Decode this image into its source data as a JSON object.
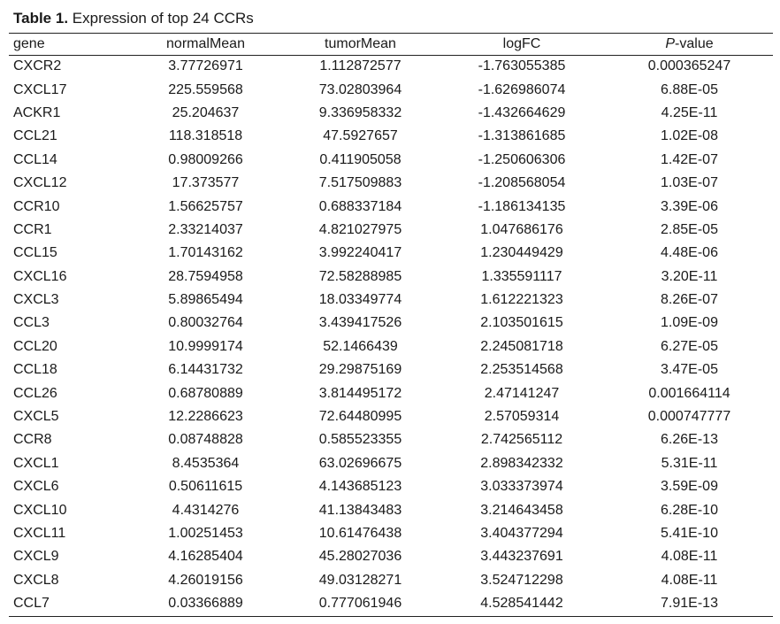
{
  "caption": {
    "label": "Table 1.",
    "text": " Expression of top 24 CCRs"
  },
  "table": {
    "headers": {
      "gene": "gene",
      "normalMean": "normalMean",
      "tumorMean": "tumorMean",
      "logFC": "logFC",
      "pvalue_p": "P",
      "pvalue_rest": "-value"
    },
    "rows": [
      [
        "CXCR2",
        "3.77726971",
        "1.112872577",
        "-1.763055385",
        "0.000365247"
      ],
      [
        "CXCL17",
        "225.559568",
        "73.02803964",
        "-1.626986074",
        "6.88E-05"
      ],
      [
        "ACKR1",
        "25.204637",
        "9.336958332",
        "-1.432664629",
        "4.25E-11"
      ],
      [
        "CCL21",
        "118.318518",
        "47.5927657",
        "-1.313861685",
        "1.02E-08"
      ],
      [
        "CCL14",
        "0.98009266",
        "0.411905058",
        "-1.250606306",
        "1.42E-07"
      ],
      [
        "CXCL12",
        "17.373577",
        "7.517509883",
        "-1.208568054",
        "1.03E-07"
      ],
      [
        "CCR10",
        "1.56625757",
        "0.688337184",
        "-1.186134135",
        "3.39E-06"
      ],
      [
        "CCR1",
        "2.33214037",
        "4.821027975",
        "1.047686176",
        "2.85E-05"
      ],
      [
        "CCL15",
        "1.70143162",
        "3.992240417",
        "1.230449429",
        "4.48E-06"
      ],
      [
        "CXCL16",
        "28.7594958",
        "72.58288985",
        "1.335591117",
        "3.20E-11"
      ],
      [
        "CXCL3",
        "5.89865494",
        "18.03349774",
        "1.612221323",
        "8.26E-07"
      ],
      [
        "CCL3",
        "0.80032764",
        "3.439417526",
        "2.103501615",
        "1.09E-09"
      ],
      [
        "CCL20",
        "10.9999174",
        "52.1466439",
        "2.245081718",
        "6.27E-05"
      ],
      [
        "CCL18",
        "6.14431732",
        "29.29875169",
        "2.253514568",
        "3.47E-05"
      ],
      [
        "CCL26",
        "0.68780889",
        "3.814495172",
        "2.47141247",
        "0.001664114"
      ],
      [
        "CXCL5",
        "12.2286623",
        "72.64480995",
        "2.57059314",
        "0.000747777"
      ],
      [
        "CCR8",
        "0.08748828",
        "0.585523355",
        "2.742565112",
        "6.26E-13"
      ],
      [
        "CXCL1",
        "8.4535364",
        "63.02696675",
        "2.898342332",
        "5.31E-11"
      ],
      [
        "CXCL6",
        "0.50611615",
        "4.143685123",
        "3.033373974",
        "3.59E-09"
      ],
      [
        "CXCL10",
        "4.4314276",
        "41.13843483",
        "3.214643458",
        "6.28E-10"
      ],
      [
        "CXCL11",
        "1.00251453",
        "10.61476438",
        "3.404377294",
        "5.41E-10"
      ],
      [
        "CXCL9",
        "4.16285404",
        "45.28027036",
        "3.443237691",
        "4.08E-11"
      ],
      [
        "CXCL8",
        "4.26019156",
        "49.03128271",
        "3.524712298",
        "4.08E-11"
      ],
      [
        "CCL7",
        "0.03366889",
        "0.777061946",
        "4.528541442",
        "7.91E-13"
      ]
    ]
  }
}
